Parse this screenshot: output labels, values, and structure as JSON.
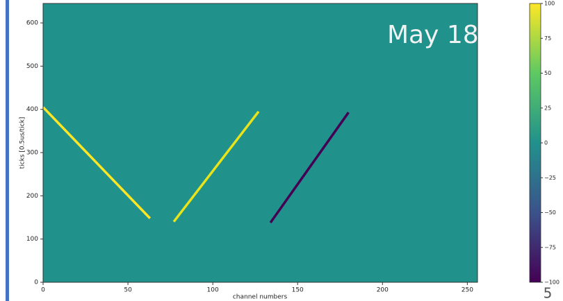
{
  "chart_data": {
    "type": "line",
    "xlabel": "channel numbers",
    "ylabel": "ticks [0.5us/tick]",
    "annotation": "May 18",
    "background": "#21918c",
    "xlim": [
      0,
      256
    ],
    "ylim": [
      0,
      645
    ],
    "xticks": [
      0,
      50,
      100,
      150,
      200,
      250
    ],
    "yticks": [
      0,
      100,
      200,
      300,
      400,
      500,
      600
    ],
    "series": [
      {
        "color": "#fde725",
        "x": [
          0,
          63
        ],
        "values": [
          405,
          148
        ]
      },
      {
        "color": "#e8e419",
        "x": [
          77,
          127
        ],
        "values": [
          140,
          395
        ]
      },
      {
        "color": "#440154",
        "x": [
          134,
          180
        ],
        "values": [
          138,
          393
        ]
      }
    ],
    "colorbar": {
      "lim": [
        -100,
        100
      ],
      "colors": [
        "#440154",
        "#3b528b",
        "#21918c",
        "#5ec962",
        "#fde725"
      ],
      "ticks": [
        100,
        75,
        50,
        25,
        0,
        {
          "value": -25,
          "label": "−25"
        },
        {
          "value": -50,
          "label": "−50"
        },
        {
          "value": -75,
          "label": "−75"
        },
        {
          "value": -100,
          "label": "−100"
        }
      ]
    },
    "page_number": "5"
  }
}
